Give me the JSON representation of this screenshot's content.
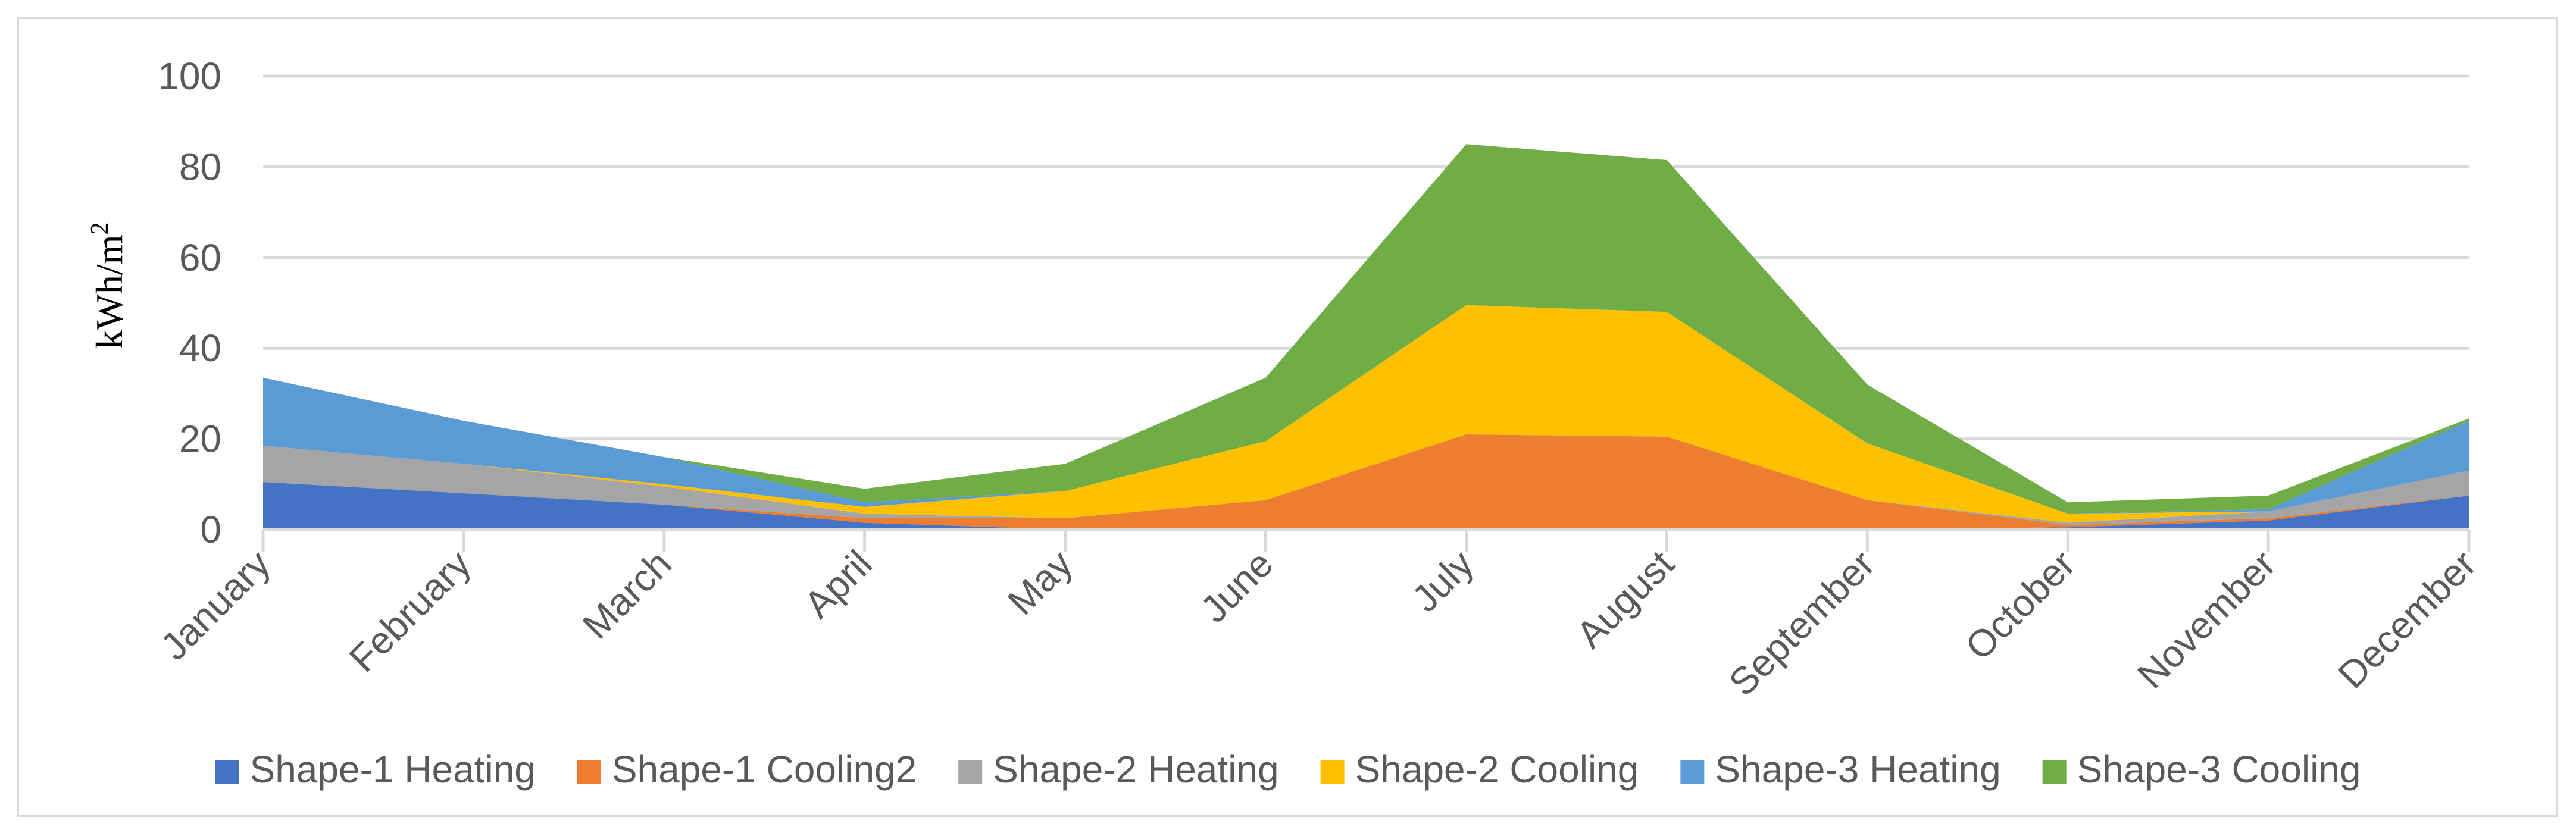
{
  "chart_data": {
    "type": "area",
    "stacked": true,
    "title": "",
    "xlabel": "",
    "ylabel": "kWh/m",
    "ylabel_superscript": "2",
    "ylim": [
      0,
      100
    ],
    "yticks": [
      0,
      20,
      40,
      60,
      80,
      100
    ],
    "ytick_labels": [
      "0",
      "20",
      "40",
      "60",
      "80",
      "100"
    ],
    "grid": true,
    "legend_position": "bottom",
    "categories": [
      "January",
      "February",
      "March",
      "April",
      "May",
      "June",
      "July",
      "August",
      "September",
      "October",
      "November",
      "December"
    ],
    "series": [
      {
        "name": "Shape-1 Heating",
        "color": "#4472c4",
        "values": [
          10.5,
          8,
          5.5,
          1.5,
          0,
          0,
          0,
          0,
          0,
          0.5,
          2,
          7.5
        ]
      },
      {
        "name": "Shape-1 Cooling2",
        "color": "#ed7d31",
        "values": [
          0,
          0,
          0,
          1,
          2.5,
          6.5,
          21,
          20.5,
          6.5,
          0.5,
          0.5,
          0
        ]
      },
      {
        "name": "Shape-2 Heating",
        "color": "#a5a5a5",
        "values": [
          8,
          6.5,
          4,
          1,
          0,
          0,
          0,
          0,
          0,
          0.5,
          1.5,
          5.5
        ]
      },
      {
        "name": "Shape-2 Cooling",
        "color": "#ffc000",
        "values": [
          0,
          0,
          0.5,
          1.5,
          6,
          13,
          28.5,
          27.5,
          12.5,
          2,
          0,
          0
        ]
      },
      {
        "name": "Shape-3 Heating",
        "color": "#5b9bd5",
        "values": [
          15,
          9.5,
          6,
          1,
          0,
          0,
          0,
          0,
          0,
          0,
          0.5,
          11
        ]
      },
      {
        "name": "Shape-3 Cooling",
        "color": "#70ad47",
        "values": [
          0,
          0,
          0,
          3,
          6,
          14,
          35.5,
          33.5,
          13,
          2.5,
          3,
          0.5
        ]
      }
    ]
  }
}
